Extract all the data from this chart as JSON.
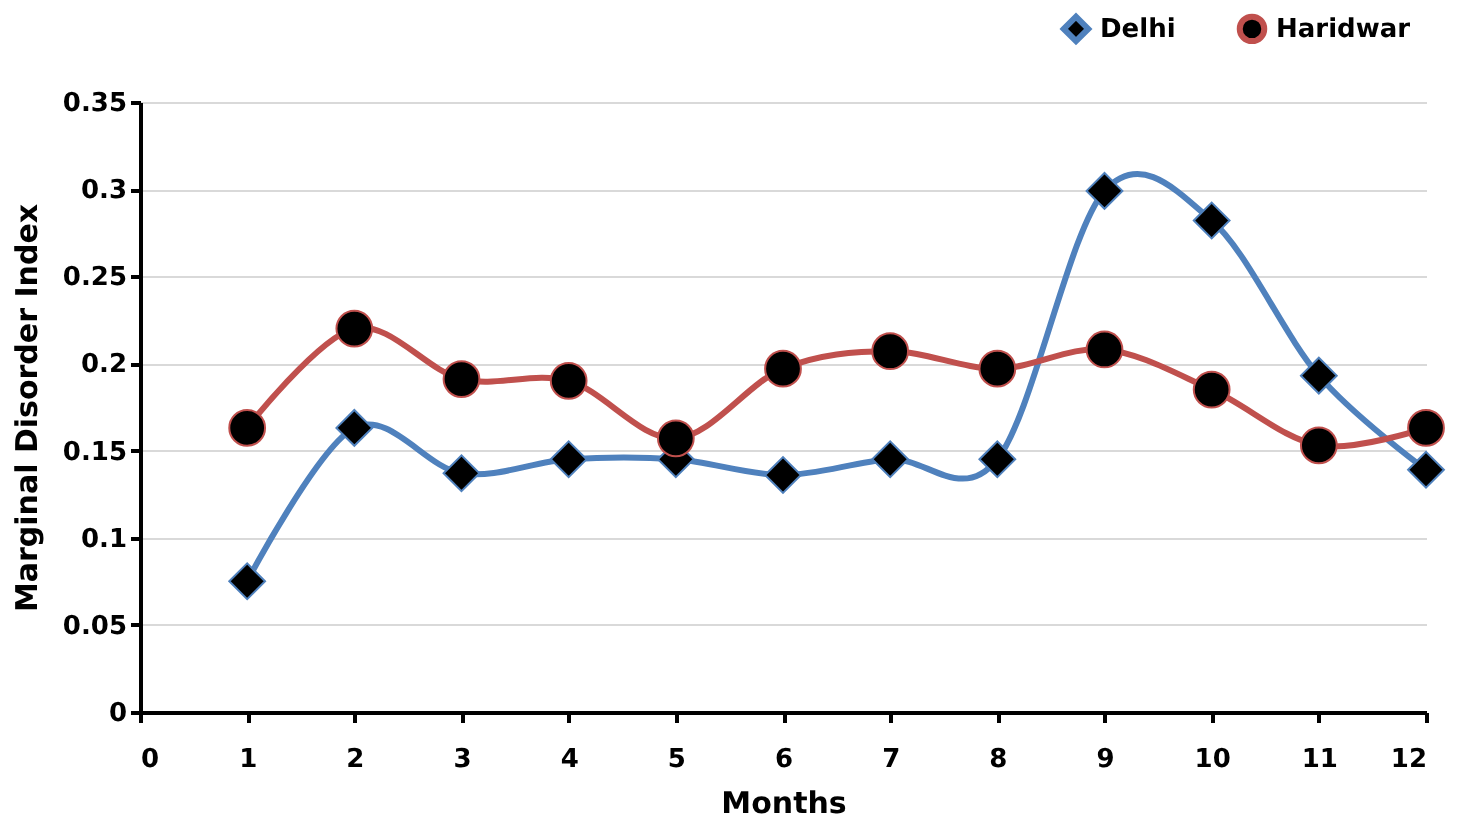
{
  "chart_data": {
    "type": "line",
    "xlabel": "Months",
    "ylabel": "Marginal Disorder Index",
    "x": [
      1,
      2,
      3,
      4,
      5,
      6,
      7,
      8,
      9,
      10,
      11,
      12
    ],
    "series": [
      {
        "name": "Delhi",
        "color": "#4f81bd",
        "marker": "diamond",
        "values": [
          0.075,
          0.163,
          0.137,
          0.145,
          0.145,
          0.136,
          0.145,
          0.145,
          0.299,
          0.282,
          0.193,
          0.139
        ]
      },
      {
        "name": "Haridwar",
        "color": "#c0504d",
        "marker": "circle",
        "values": [
          0.163,
          0.22,
          0.191,
          0.19,
          0.157,
          0.197,
          0.207,
          0.197,
          0.208,
          0.185,
          0.153,
          0.163
        ]
      }
    ],
    "xlim": [
      0,
      12
    ],
    "xticks": [
      0,
      1,
      2,
      3,
      4,
      5,
      6,
      7,
      8,
      9,
      10,
      11,
      12
    ],
    "ylim": [
      0,
      0.35
    ],
    "yticks": [
      0,
      0.05,
      0.1,
      0.15,
      0.2,
      0.25,
      0.3,
      0.35
    ],
    "grid": "y",
    "legend": "top right",
    "line_style": "solid"
  }
}
